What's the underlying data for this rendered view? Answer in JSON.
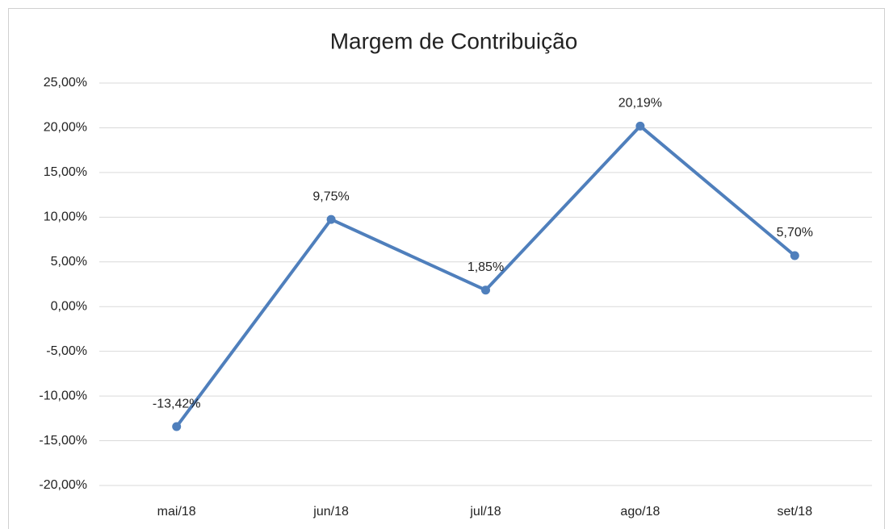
{
  "chart_data": {
    "type": "line",
    "title": "Margem de Contribuição",
    "categories": [
      "mai/18",
      "jun/18",
      "jul/18",
      "ago/18",
      "set/18"
    ],
    "values": [
      -13.42,
      9.75,
      1.85,
      20.19,
      5.7
    ],
    "value_labels": [
      "-13,42%",
      "9,75%",
      "1,85%",
      "20,19%",
      "5,70%"
    ],
    "color": "#4f7fbc",
    "ylim": [
      -20,
      25
    ],
    "yticks": [
      {
        "value": -20,
        "label": "-20,00%"
      },
      {
        "value": -15,
        "label": "-15,00%"
      },
      {
        "value": -10,
        "label": "-10,00%"
      },
      {
        "value": -5,
        "label": "-5,00%"
      },
      {
        "value": 0,
        "label": "0,00%"
      },
      {
        "value": 5,
        "label": "5,00%"
      },
      {
        "value": 10,
        "label": "10,00%"
      },
      {
        "value": 15,
        "label": "15,00%"
      },
      {
        "value": 20,
        "label": "20,00%"
      },
      {
        "value": 25,
        "label": "25,00%"
      }
    ],
    "grid": true
  }
}
